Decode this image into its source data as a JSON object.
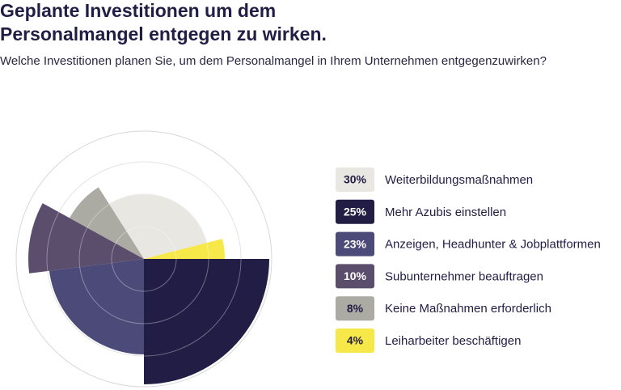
{
  "chart_data": {
    "type": "polar_area",
    "title": "Geplante Investitionen um dem Personalmangel entgegen zu wirken.",
    "subtitle": "Welche Investitionen planen Sie, um dem Personalmangel in Ihrem Unternehmen entgegenzuwirken?",
    "categories": [
      "Weiterbildungsmaßnahmen",
      "Mehr Azubis einstellen",
      "Anzeigen, Headhunter & Jobplattformen",
      "Subunternehmer beauftragen",
      "Keine Maßnahmen erforderlich",
      "Leiharbeiter beschäftigen"
    ],
    "values": [
      30,
      25,
      23,
      10,
      8,
      4
    ],
    "value_labels": [
      "30%",
      "25%",
      "23%",
      "10%",
      "8%",
      "4%"
    ],
    "colors": [
      "#e9e7e1",
      "#221d45",
      "#4b4a79",
      "#5a4e6c",
      "#abaaa3",
      "#f7e84a"
    ]
  }
}
